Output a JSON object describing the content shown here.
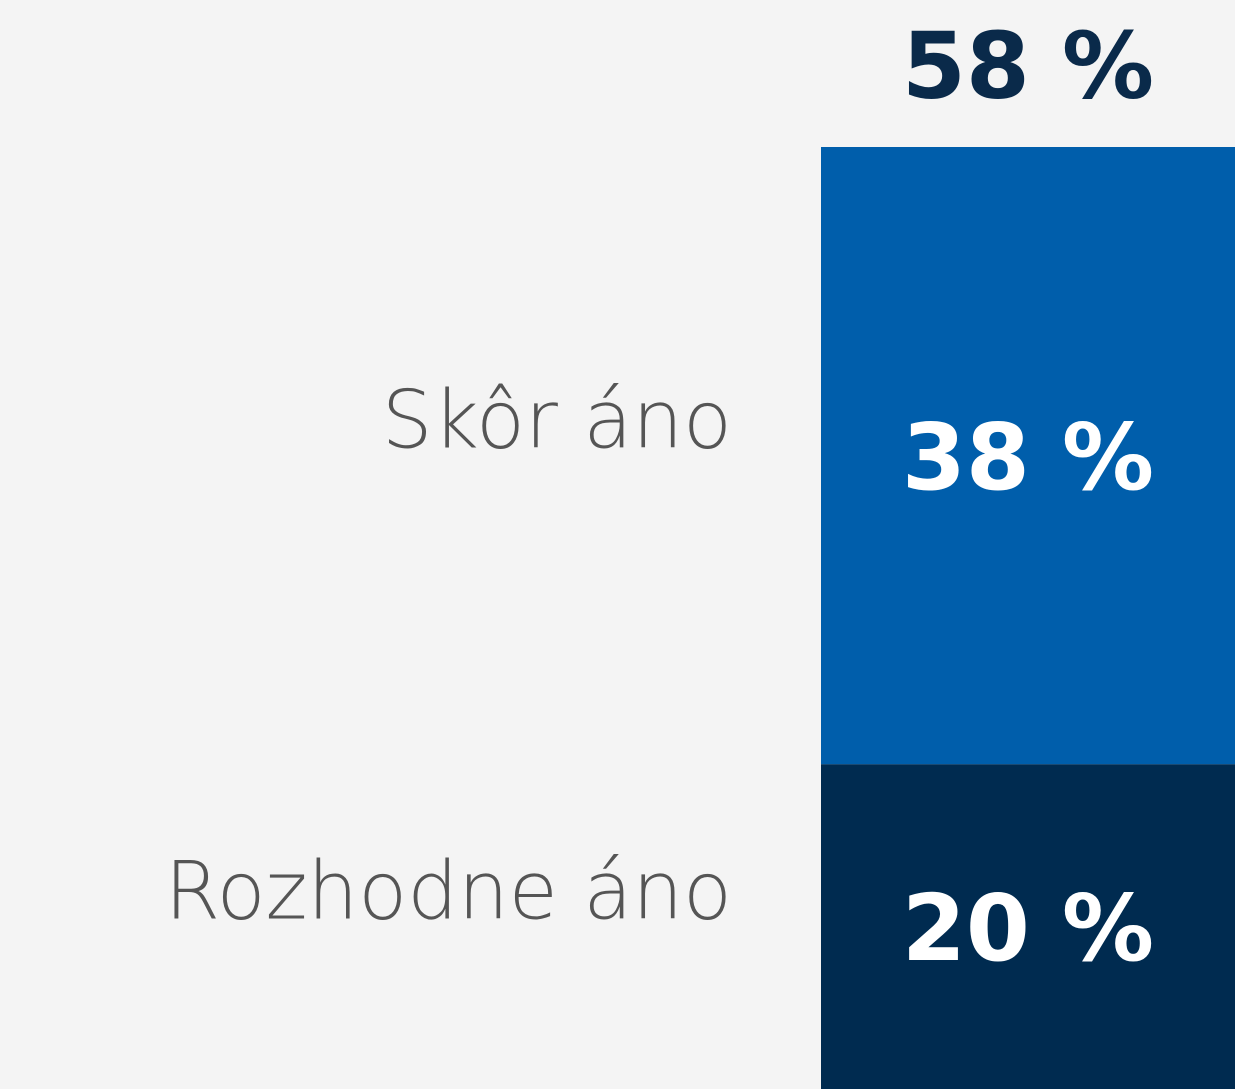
{
  "chart_data": {
    "type": "stacked-bar",
    "series": [
      {
        "name": "Rozhodne áno",
        "color": "#002b50",
        "values": [
          20
        ],
        "value_labels": [
          "20 %"
        ]
      },
      {
        "name": "Skôr áno",
        "color": "#005eab",
        "values": [
          38
        ],
        "value_labels": [
          "38 %"
        ]
      }
    ],
    "total": 58,
    "total_label": "58 %",
    "total_color": "#0a2a4a"
  }
}
